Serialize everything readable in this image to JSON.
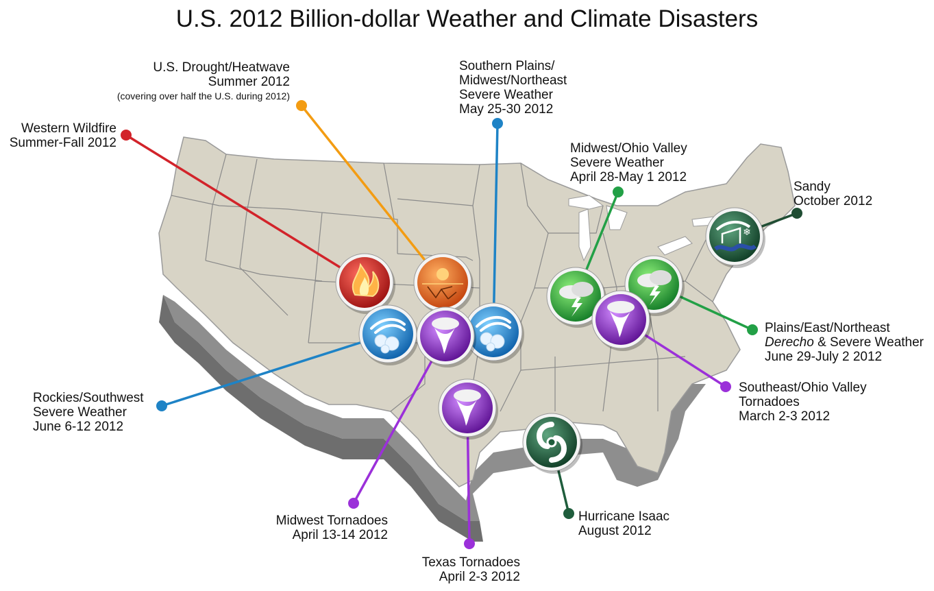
{
  "title": "U.S. 2012 Billion-dollar Weather and Climate Disasters",
  "colors": {
    "wildfire": "#d2232a",
    "drought": "#f39c12",
    "severe_blue": "#1e83c6",
    "tornado": "#9b30d9",
    "severe_green": "#22a046",
    "hurricane": "#1f5d3c",
    "map_fill": "#d8d4c6",
    "map_side": "#8f8f8f"
  },
  "events": [
    {
      "id": "drought",
      "lines": [
        "U.S. Drought/Heatwave",
        "Summer 2012"
      ],
      "note": "(covering over half the U.S. during 2012)",
      "icon": "drought-icon",
      "color": "#f39c12"
    },
    {
      "id": "southern-plains",
      "lines": [
        "Southern Plains/",
        "Midwest/Northeast",
        "Severe Weather",
        "May 25-30 2012"
      ],
      "icon": "hail-storm-icon",
      "color": "#1e83c6"
    },
    {
      "id": "western-wildfire",
      "lines": [
        "Western Wildfire",
        "Summer-Fall 2012"
      ],
      "icon": "fire-icon",
      "color": "#d2232a"
    },
    {
      "id": "midwest-ohio",
      "lines": [
        "Midwest/Ohio Valley",
        "Severe Weather",
        "April 28-May 1 2012"
      ],
      "icon": "thunderstorm-icon",
      "color": "#22a046"
    },
    {
      "id": "sandy",
      "lines": [
        "Sandy",
        "October 2012"
      ],
      "icon": "storm-surge-icon",
      "color": "#1f4d33"
    },
    {
      "id": "plains-east",
      "line1": "Plains/East/Northeast",
      "line2_em": "Derecho",
      "line2_rest": " & Severe Weather",
      "line3": "June 29-July 2 2012",
      "icon": "thunderstorm-icon",
      "color": "#22a046"
    },
    {
      "id": "southeast-ohio",
      "lines": [
        "Southeast/Ohio Valley",
        "Tornadoes",
        "March 2-3 2012"
      ],
      "icon": "tornado-icon",
      "color": "#9b30d9"
    },
    {
      "id": "rockies",
      "lines": [
        "Rockies/Southwest",
        "Severe Weather",
        "June 6-12 2012"
      ],
      "icon": "hail-storm-icon",
      "color": "#1e83c6"
    },
    {
      "id": "midwest-tornadoes",
      "lines": [
        "Midwest Tornadoes",
        "April 13-14 2012"
      ],
      "icon": "tornado-icon",
      "color": "#9b30d9"
    },
    {
      "id": "texas-tornadoes",
      "lines": [
        "Texas Tornadoes",
        "April 2-3 2012"
      ],
      "icon": "tornado-icon",
      "color": "#9b30d9"
    },
    {
      "id": "isaac",
      "lines": [
        "Hurricane Isaac",
        "August 2012"
      ],
      "icon": "hurricane-icon",
      "color": "#1f5d3c"
    }
  ]
}
